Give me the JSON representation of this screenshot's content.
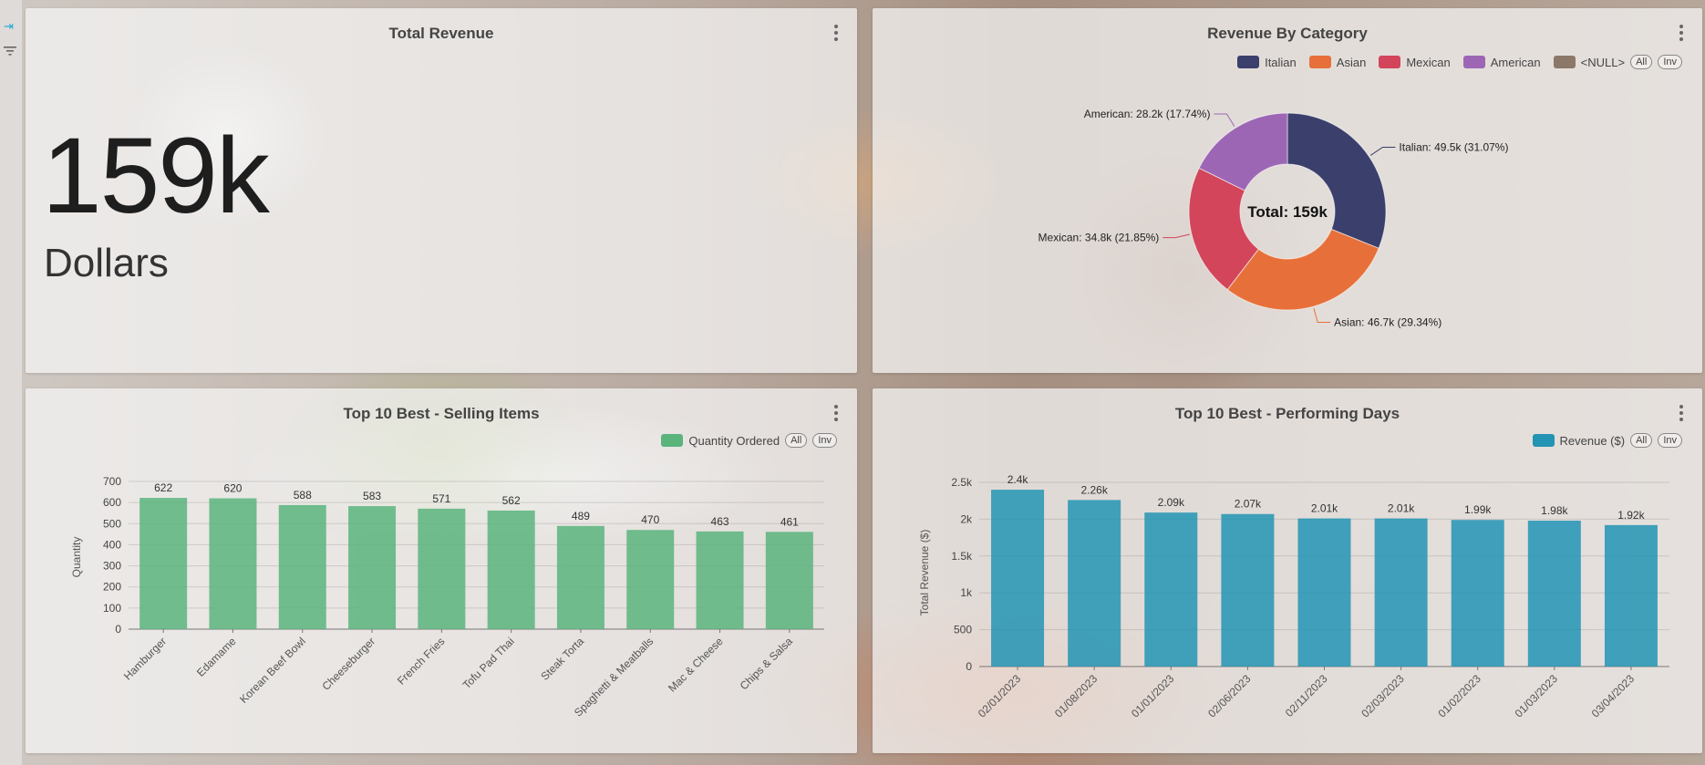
{
  "rail": {
    "collapse_icon": "collapse-right-icon",
    "filter_icon": "filter-icon"
  },
  "total_revenue": {
    "title": "Total Revenue",
    "value": "159k",
    "unit": "Dollars"
  },
  "revenue_by_category": {
    "title": "Revenue By Category",
    "legend": [
      "Italian",
      "Asian",
      "Mexican",
      "American",
      "<NULL>"
    ],
    "legend_all": "All",
    "legend_inv": "Inv",
    "center_label": "Total: 159k",
    "labels": [
      "Italian: 49.5k (31.07%)",
      "Asian: 46.7k (29.34%)",
      "Mexican: 34.8k (21.85%)",
      "American: 28.2k (17.74%)"
    ]
  },
  "top_items": {
    "title": "Top 10 Best - Selling Items",
    "legend_label": "Quantity Ordered",
    "legend_all": "All",
    "legend_inv": "Inv",
    "ylabel": "Quantity"
  },
  "top_days": {
    "title": "Top 10 Best - Performing Days",
    "legend_label": "Revenue ($)",
    "legend_all": "All",
    "legend_inv": "Inv",
    "ylabel": "Total Revenue ($)"
  },
  "colors": {
    "italian": "#3b3f6b",
    "asian": "#e7703a",
    "mexican": "#d2455a",
    "american": "#9c66b5",
    "null": "#8c7868",
    "green": "#5ab47c",
    "teal": "#2394b4"
  },
  "chart_data": [
    {
      "type": "pie",
      "title": "Revenue By Category",
      "categories": [
        "Italian",
        "Asian",
        "Mexican",
        "American"
      ],
      "values": [
        49.5,
        46.7,
        34.8,
        28.2
      ],
      "percentages": [
        31.07,
        29.34,
        21.85,
        17.74
      ],
      "units": "k",
      "legend": "top-right"
    },
    {
      "type": "bar",
      "title": "Top 10 Best - Selling Items",
      "categories": [
        "Hamburger",
        "Edamame",
        "Korean Beef Bowl",
        "Cheeseburger",
        "French Fries",
        "Tofu Pad Thai",
        "Steak Torta",
        "Spaghetti & Meatballs",
        "Mac & Cheese",
        "Chips & Salsa"
      ],
      "series": [
        {
          "name": "Quantity Ordered",
          "values": [
            622,
            620,
            588,
            583,
            571,
            562,
            489,
            470,
            463,
            461
          ]
        }
      ],
      "data_labels": [
        "622",
        "620",
        "588",
        "583",
        "571",
        "562",
        "489",
        "470",
        "463",
        "461"
      ],
      "ylabel": "Quantity",
      "ylim": [
        0,
        700
      ],
      "yticks": [
        "0",
        "100",
        "200",
        "300",
        "400",
        "500",
        "600",
        "700"
      ],
      "grid": true,
      "legend": "top-right"
    },
    {
      "type": "bar",
      "title": "Top 10 Best - Performing Days",
      "categories": [
        "02/01/2023",
        "01/08/2023",
        "01/01/2023",
        "02/06/2023",
        "02/11/2023",
        "02/03/2023",
        "01/02/2023",
        "01/03/2023",
        "03/04/2023"
      ],
      "series": [
        {
          "name": "Revenue ($)",
          "values": [
            2400,
            2260,
            2090,
            2070,
            2010,
            2010,
            1990,
            1980,
            1920
          ]
        }
      ],
      "data_labels": [
        "2.4k",
        "2.26k",
        "2.09k",
        "2.07k",
        "2.01k",
        "2.01k",
        "1.99k",
        "1.98k",
        "1.92k"
      ],
      "ylabel": "Total Revenue ($)",
      "ylim": [
        0,
        2500
      ],
      "yticks": [
        "0",
        "500",
        "1k",
        "1.5k",
        "2k",
        "2.5k"
      ],
      "grid": true,
      "legend": "top-right"
    }
  ]
}
